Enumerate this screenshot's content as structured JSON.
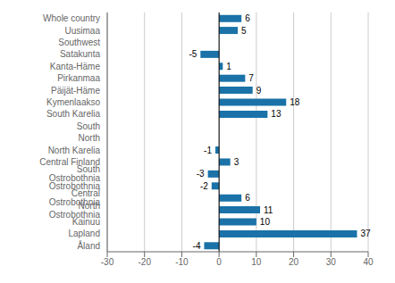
{
  "chart_data": {
    "type": "bar",
    "orientation": "horizontal",
    "categories": [
      "Whole country",
      "Uusimaa",
      "Southwest",
      "Satakunta",
      "Kanta-Häme",
      "Pirkanmaa",
      "Päijät-Häme",
      "Kymenlaakso",
      "South Karelia",
      "South",
      "North",
      "North Karelia",
      "Central Finland",
      "South Ostrobothnia",
      "Ostrobothnia",
      "Central Ostrobothnia",
      "North Ostrobothnia",
      "Kainuu",
      "Lapland",
      "Åland"
    ],
    "values": [
      6,
      5,
      0,
      -5,
      1,
      7,
      9,
      18,
      13,
      0,
      0,
      -1,
      3,
      -3,
      -2,
      6,
      11,
      10,
      37,
      -4
    ],
    "color": "#1a72a8",
    "xlim": [
      -30,
      40
    ],
    "xticks": [
      -30,
      -20,
      -10,
      0,
      10,
      20,
      30,
      40
    ],
    "grid": true,
    "data_labels": true
  }
}
